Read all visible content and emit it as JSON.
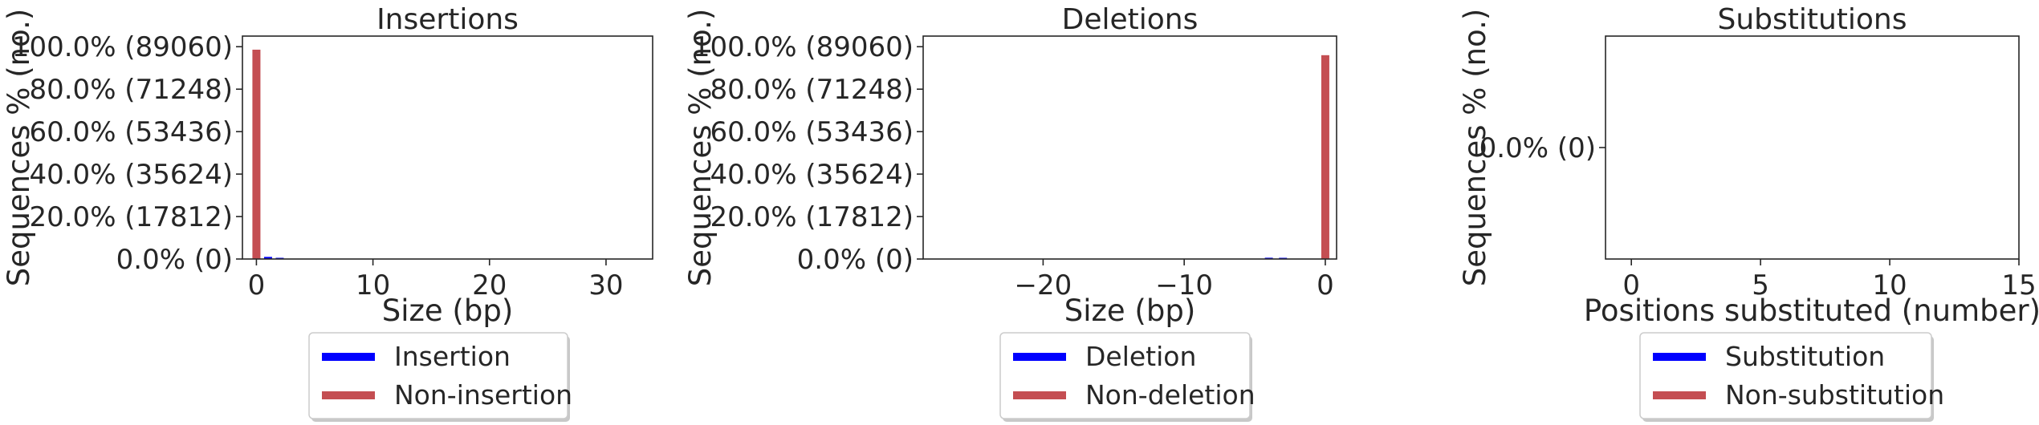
{
  "chart_data": [
    {
      "type": "bar",
      "title": "Insertions",
      "xlabel": "Size (bp)",
      "ylabel": "Sequences % (no.)",
      "xlim": [
        -1.2,
        34
      ],
      "ylim": [
        0,
        105
      ],
      "xticks": [
        0,
        10,
        20,
        30
      ],
      "xtick_labels": [
        "0",
        "10",
        "20",
        "30"
      ],
      "yticks": [
        0,
        20,
        40,
        60,
        80,
        100
      ],
      "ytick_labels": [
        "0.0% (0)",
        "20.0% (17812)",
        "40.0% (35624)",
        "60.0% (53436)",
        "80.0% (71248)",
        "100.0% (89060)"
      ],
      "series": [
        {
          "name": "Insertion",
          "color": "#0000ff",
          "x": [
            1,
            2
          ],
          "values": [
            1.0,
            0.1
          ]
        },
        {
          "name": "Non-insertion",
          "color": "#c44e52",
          "x": [
            0
          ],
          "values": [
            98.6
          ]
        }
      ],
      "legend": "below",
      "grid": false
    },
    {
      "type": "bar",
      "title": "Deletions",
      "xlabel": "Size (bp)",
      "ylabel": "Sequences % (no.)",
      "xlim": [
        -28.5,
        0.8
      ],
      "ylim": [
        0,
        105
      ],
      "xticks": [
        -20,
        -10,
        0
      ],
      "xtick_labels": [
        "−20",
        "−10",
        "0"
      ],
      "yticks": [
        0,
        20,
        40,
        60,
        80,
        100
      ],
      "ytick_labels": [
        "0.0% (0)",
        "20.0% (17812)",
        "40.0% (35624)",
        "60.0% (53436)",
        "80.0% (71248)",
        "100.0% (89060)"
      ],
      "series": [
        {
          "name": "Deletion",
          "color": "#0000ff",
          "x": [
            -4,
            -3
          ],
          "values": [
            0.6,
            0.4
          ]
        },
        {
          "name": "Non-deletion",
          "color": "#c44e52",
          "x": [
            0
          ],
          "values": [
            96.0
          ]
        }
      ],
      "legend": "below",
      "grid": false
    },
    {
      "type": "bar",
      "title": "Substitutions",
      "xlabel": "Positions substituted (number)",
      "ylabel": "Sequences % (no.)",
      "xlim": [
        -1,
        15
      ],
      "ylim": [
        -1,
        1
      ],
      "xticks": [
        0,
        5,
        10,
        15
      ],
      "xtick_labels": [
        "0",
        "5",
        "10",
        "15"
      ],
      "yticks": [
        0
      ],
      "ytick_labels": [
        "0.0% (0)"
      ],
      "series": [
        {
          "name": "Substitution",
          "color": "#0000ff",
          "x": [],
          "values": []
        },
        {
          "name": "Non-substitution",
          "color": "#c44e52",
          "x": [],
          "values": []
        }
      ],
      "legend": "below",
      "grid": false
    }
  ]
}
